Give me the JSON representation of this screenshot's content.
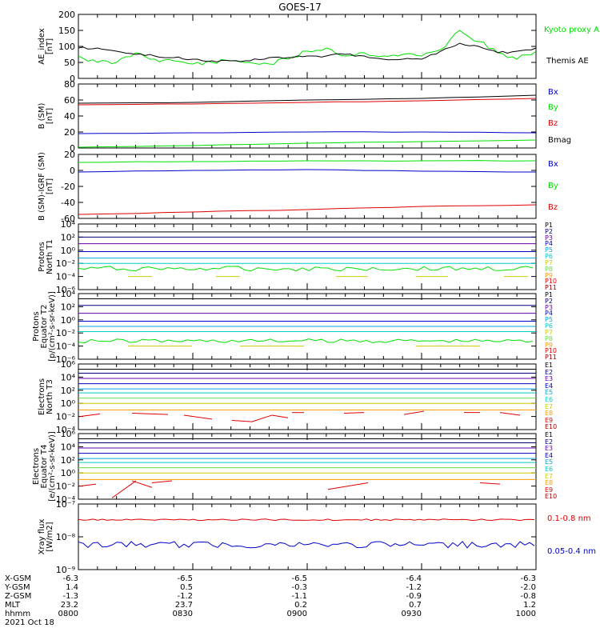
{
  "title": "GOES-17",
  "colors": {
    "black": "#000000",
    "green": "#00e000",
    "blue": "#0000cc",
    "red": "#dd0000",
    "navy": "#000080",
    "purple": "#6600aa",
    "cyan": "#00aadd",
    "teal": "#00cccc",
    "lightgreen": "#66dd44",
    "yellow": "#cccc00",
    "orange": "#ff9900",
    "darkred": "#aa0000"
  },
  "chart_data": [
    {
      "type": "line",
      "ylabel": "AE_index\n[nT]",
      "yticks": [
        "200",
        "150",
        "100",
        "50",
        "0"
      ],
      "ylim": [
        0,
        200
      ],
      "series": [
        {
          "name": "Kyoto proxy AE",
          "color": "#00e000",
          "x": [
            800,
            805,
            810,
            815,
            820,
            825,
            830,
            835,
            840,
            845,
            850,
            855,
            900,
            905,
            910,
            915,
            920,
            925,
            930,
            935,
            940,
            945,
            950,
            955,
            1000
          ],
          "values": [
            70,
            50,
            50,
            80,
            60,
            55,
            45,
            50,
            55,
            50,
            45,
            60,
            85,
            95,
            70,
            80,
            70,
            75,
            70,
            90,
            150,
            115,
            80,
            60,
            85
          ]
        },
        {
          "name": "Themis AE",
          "color": "#000000",
          "x": [
            800,
            805,
            810,
            815,
            820,
            825,
            830,
            835,
            840,
            845,
            850,
            855,
            900,
            905,
            910,
            915,
            920,
            925,
            930,
            935,
            940,
            945,
            950,
            955,
            1000
          ],
          "values": [
            95,
            95,
            85,
            75,
            70,
            65,
            60,
            55,
            55,
            55,
            65,
            65,
            70,
            70,
            75,
            70,
            60,
            60,
            60,
            85,
            110,
            100,
            80,
            85,
            95
          ]
        }
      ]
    },
    {
      "type": "line",
      "ylabel": "B (SM)\n[nT]",
      "yticks": [
        "80",
        "60",
        "40",
        "20",
        "0"
      ],
      "ylim": [
        0,
        80
      ],
      "series": [
        {
          "name": "Bx",
          "color": "#0000cc",
          "x": [
            800,
            830,
            900,
            930,
            1000
          ],
          "values": [
            18,
            19,
            20,
            20,
            19
          ]
        },
        {
          "name": "By",
          "color": "#00e000",
          "x": [
            800,
            830,
            900,
            930,
            1000
          ],
          "values": [
            1,
            3,
            6,
            8,
            10
          ]
        },
        {
          "name": "Bz",
          "color": "#dd0000",
          "x": [
            800,
            830,
            900,
            930,
            1000
          ],
          "values": [
            54,
            55,
            57,
            59,
            62
          ]
        },
        {
          "name": "Bmag",
          "color": "#000000",
          "x": [
            800,
            830,
            900,
            930,
            1000
          ],
          "values": [
            56,
            57,
            60,
            62,
            66
          ]
        }
      ]
    },
    {
      "type": "line",
      "ylabel": "B (SM)-IGRF (SM)\n[nT]",
      "yticks": [
        "20",
        "0",
        "-20",
        "-40",
        "-60"
      ],
      "ylim": [
        -60,
        20
      ],
      "series": [
        {
          "name": "Bx",
          "color": "#0000cc",
          "x": [
            800,
            830,
            900,
            930,
            1000
          ],
          "values": [
            -2,
            0,
            1,
            -1,
            -2
          ]
        },
        {
          "name": "By",
          "color": "#00e000",
          "x": [
            800,
            830,
            900,
            930,
            1000
          ],
          "values": [
            10,
            11,
            12,
            12,
            12
          ]
        },
        {
          "name": "Bz",
          "color": "#dd0000",
          "x": [
            800,
            830,
            900,
            930,
            1000
          ],
          "values": [
            -55,
            -52,
            -49,
            -45,
            -43
          ]
        }
      ]
    },
    {
      "type": "line",
      "ylabel": "Protons\nNorth T1",
      "yticks": [
        "10⁴",
        "10²",
        "10⁰",
        "10⁻²",
        "10⁻⁴",
        "10⁻⁶"
      ],
      "legend": [
        "P1",
        "P2",
        "P3",
        "P4",
        "P5",
        "P6",
        "P7",
        "P8",
        "P9",
        "P10",
        "P11"
      ]
    },
    {
      "type": "line",
      "ylabel": "Protons\nEquator T2\n[p/(cm²-s-sr-keV)]",
      "yticks": [
        "10⁴",
        "10²",
        "10⁰",
        "10⁻²",
        "10⁻⁴",
        "10⁻⁶"
      ],
      "legend": [
        "P1",
        "P2",
        "P3",
        "P4",
        "P5",
        "P6",
        "P7",
        "P8",
        "P9",
        "P10",
        "P11"
      ]
    },
    {
      "type": "line",
      "ylabel": "Electrons\nNorth T3",
      "yticks": [
        "10⁶",
        "10⁴",
        "10²",
        "10⁰",
        "10⁻²",
        "10⁻⁴"
      ],
      "legend": [
        "E1",
        "E2",
        "E3",
        "E4",
        "E5",
        "E6",
        "E7",
        "E8",
        "E9",
        "E10"
      ]
    },
    {
      "type": "line",
      "ylabel": "Electrons\nEquator T4\n[e/(cm²-s-sr-keV)]",
      "yticks": [
        "10⁶",
        "10⁴",
        "10²",
        "10⁰",
        "10⁻²",
        "10⁻⁴"
      ],
      "legend": [
        "E1",
        "E2",
        "E3",
        "E4",
        "E5",
        "E6",
        "E7",
        "E8",
        "E9",
        "E10"
      ]
    },
    {
      "type": "line",
      "ylabel": "Xray flux\n[W/m2]",
      "yticks": [
        "10⁻⁷",
        "10⁻⁸",
        "10⁻⁹"
      ],
      "series": [
        {
          "name": "0.1-0.8 nm",
          "color": "#dd0000",
          "x": [
            800,
            830,
            900,
            930,
            1000
          ],
          "values": [
            1.2e-07,
            1.2e-07,
            1.2e-07,
            1.2e-07,
            1.2e-07
          ]
        },
        {
          "name": "0.05-0.4 nm",
          "color": "#0000cc",
          "x": [
            800,
            830,
            900,
            930,
            1000
          ],
          "values": [
            3e-09,
            3e-09,
            3e-09,
            3e-09,
            3e-09
          ]
        }
      ]
    }
  ],
  "ephemeris": {
    "labels": [
      "X-GSM",
      "Y-GSM",
      "Z-GSM",
      "MLT",
      "hhmm",
      "2021 Oct 18"
    ],
    "columns": [
      [
        "-6.3",
        "1.4",
        "-1.3",
        "23.2",
        "0800"
      ],
      [
        "-6.5",
        "0.5",
        "-1.2",
        "23.7",
        "0830"
      ],
      [
        "-6.5",
        "-0.3",
        "-1.1",
        "0.2",
        "0900"
      ],
      [
        "-6.4",
        "-1.2",
        "-0.9",
        "0.7",
        "0930"
      ],
      [
        "-6.3",
        "-2.0",
        "-0.8",
        "1.2",
        "1000"
      ]
    ]
  }
}
